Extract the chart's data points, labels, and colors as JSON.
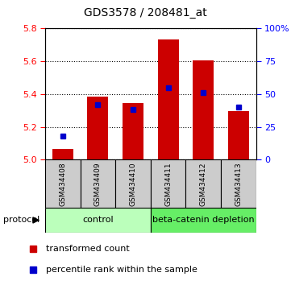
{
  "title": "GDS3578 / 208481_at",
  "categories": [
    "GSM434408",
    "GSM434409",
    "GSM434410",
    "GSM434411",
    "GSM434412",
    "GSM434413"
  ],
  "red_values": [
    5.065,
    5.385,
    5.345,
    5.735,
    5.605,
    5.295
  ],
  "blue_values_pct": [
    18,
    42,
    38,
    55,
    51,
    40
  ],
  "ylim_left": [
    5.0,
    5.8
  ],
  "ylim_right": [
    0,
    100
  ],
  "yticks_left": [
    5.0,
    5.2,
    5.4,
    5.6,
    5.8
  ],
  "yticks_right": [
    0,
    25,
    50,
    75,
    100
  ],
  "ytick_labels_right": [
    "0",
    "25",
    "50",
    "75",
    "100%"
  ],
  "bar_color": "#cc0000",
  "dot_color": "#0000cc",
  "bar_base": 5.0,
  "control_color": "#bbffbb",
  "depletion_color": "#66ee66",
  "xtick_bg_color": "#cccccc",
  "protocol_label": "protocol",
  "legend_items": [
    {
      "label": "transformed count",
      "color": "#cc0000",
      "marker": "s"
    },
    {
      "label": "percentile rank within the sample",
      "color": "#0000cc",
      "marker": "s"
    }
  ],
  "background_color": "#ffffff"
}
